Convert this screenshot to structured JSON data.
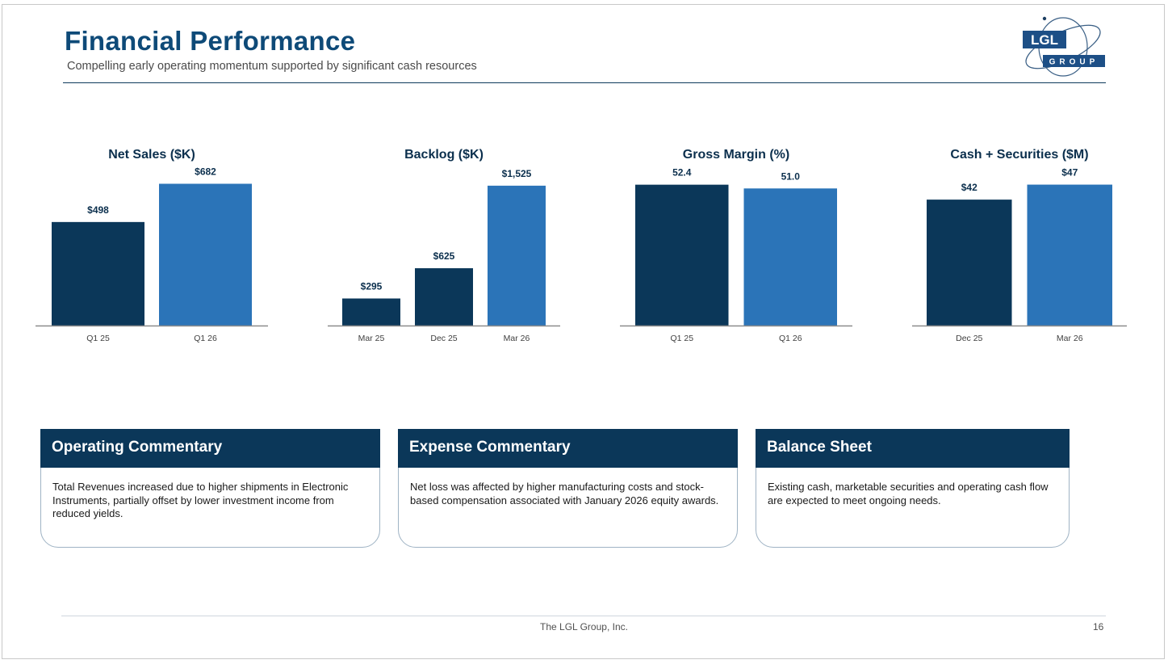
{
  "header": {
    "title": "Financial Performance",
    "subtitle": "Compelling early operating momentum supported by significant cash resources"
  },
  "logo": {
    "top_text": "LGL",
    "bottom_text": "GROUP"
  },
  "colors": {
    "dark": "#0b3759",
    "light": "#2b74b8",
    "title": "#0e4a78"
  },
  "chart_data": [
    {
      "type": "bar",
      "title": "Net Sales ($K)",
      "categories": [
        "Q1 25",
        "Q1 26"
      ],
      "values": [
        498,
        682
      ],
      "labels": [
        "$498",
        "$682"
      ],
      "ylim": [
        0,
        750
      ]
    },
    {
      "type": "bar",
      "title": "Backlog ($K)",
      "categories": [
        "Mar 25",
        "Dec 25",
        "Mar 26"
      ],
      "values": [
        295,
        625,
        1525
      ],
      "labels": [
        "$295",
        "$625",
        "$1,525"
      ],
      "ylim": [
        0,
        1700
      ]
    },
    {
      "type": "bar",
      "title": "Gross Margin (%)",
      "categories": [
        "Q1 25",
        "Q1 26"
      ],
      "values": [
        52.4,
        51.0
      ],
      "labels": [
        "52.4",
        "51.0"
      ],
      "ylim": [
        0,
        58
      ]
    },
    {
      "type": "bar",
      "title": "Cash + Securities ($M)",
      "categories": [
        "Dec 25",
        "Mar 26"
      ],
      "values": [
        42,
        47
      ],
      "labels": [
        "$42",
        "$47"
      ],
      "ylim": [
        0,
        52
      ]
    }
  ],
  "cards": [
    {
      "heading": "Operating Commentary",
      "body": "Total Revenues increased due to higher shipments in Electronic Instruments, partially offset by lower investment income from reduced yields."
    },
    {
      "heading": "Expense Commentary",
      "body": "Net loss was affected by higher manufacturing costs and stock-based compensation associated with January 2026 equity awards."
    },
    {
      "heading": "Balance Sheet",
      "body": "Existing cash, marketable securities and operating cash flow are expected to meet ongoing needs."
    }
  ],
  "footer": {
    "company": "The LGL Group, Inc.",
    "page": "16"
  }
}
